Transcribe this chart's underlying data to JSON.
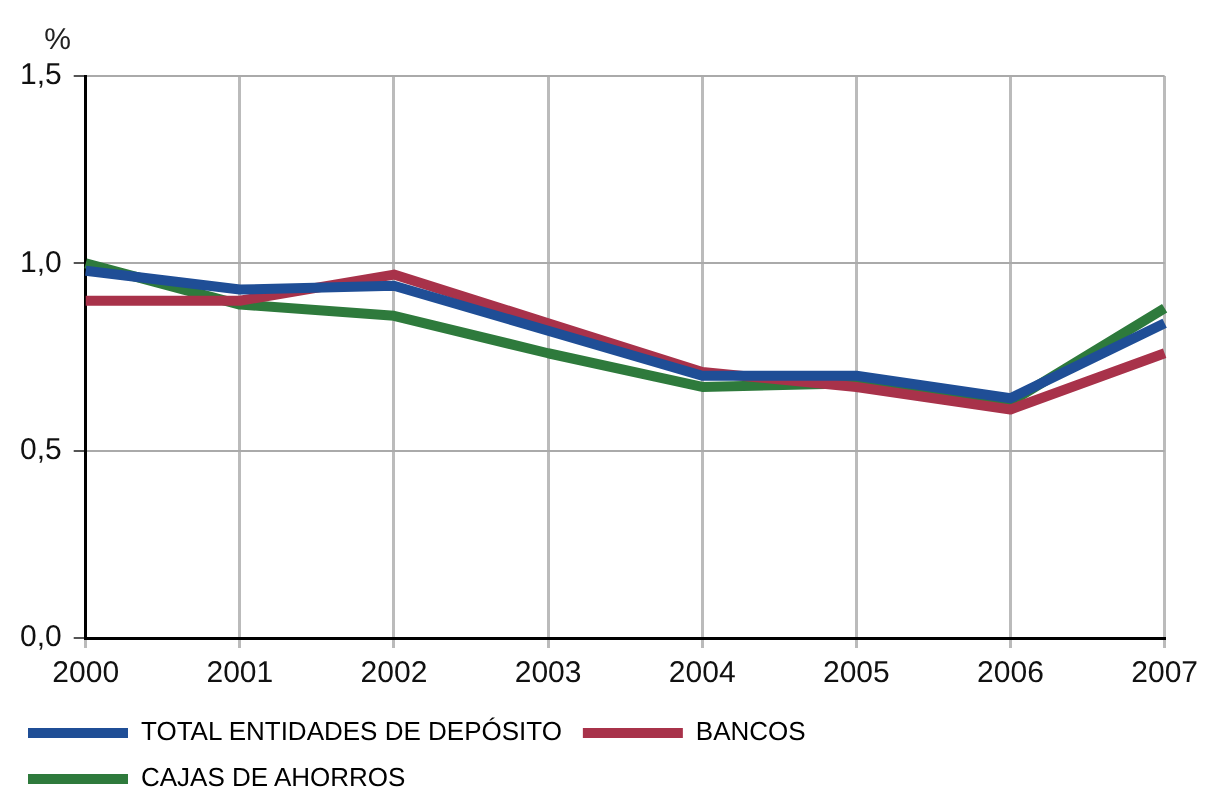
{
  "chart_data": {
    "type": "line",
    "ylabel": "%",
    "categories": [
      "2000",
      "2001",
      "2002",
      "2003",
      "2004",
      "2005",
      "2006",
      "2007"
    ],
    "series": [
      {
        "name": "TOTAL ENTIDADES DE DEPÓSITO",
        "color": "#1f4e96",
        "values": [
          0.98,
          0.93,
          0.94,
          0.82,
          0.7,
          0.7,
          0.64,
          0.84
        ]
      },
      {
        "name": "BANCOS",
        "color": "#a8324a",
        "values": [
          0.9,
          0.9,
          0.97,
          0.84,
          0.71,
          0.67,
          0.61,
          0.76
        ]
      },
      {
        "name": "CAJAS DE AHORROS",
        "color": "#2e7a3c",
        "values": [
          1.0,
          0.89,
          0.86,
          0.76,
          0.67,
          0.68,
          0.63,
          0.88
        ]
      }
    ],
    "ylim": [
      0,
      1.5
    ],
    "yticks": [
      {
        "value": 0,
        "label": "0,0"
      },
      {
        "value": 0.5,
        "label": "0,5"
      },
      {
        "value": 1,
        "label": "1,0"
      },
      {
        "value": 1.5,
        "label": "1,5"
      }
    ],
    "grid": true,
    "legend": "bottom",
    "marker": "none",
    "line_style": "solid"
  }
}
